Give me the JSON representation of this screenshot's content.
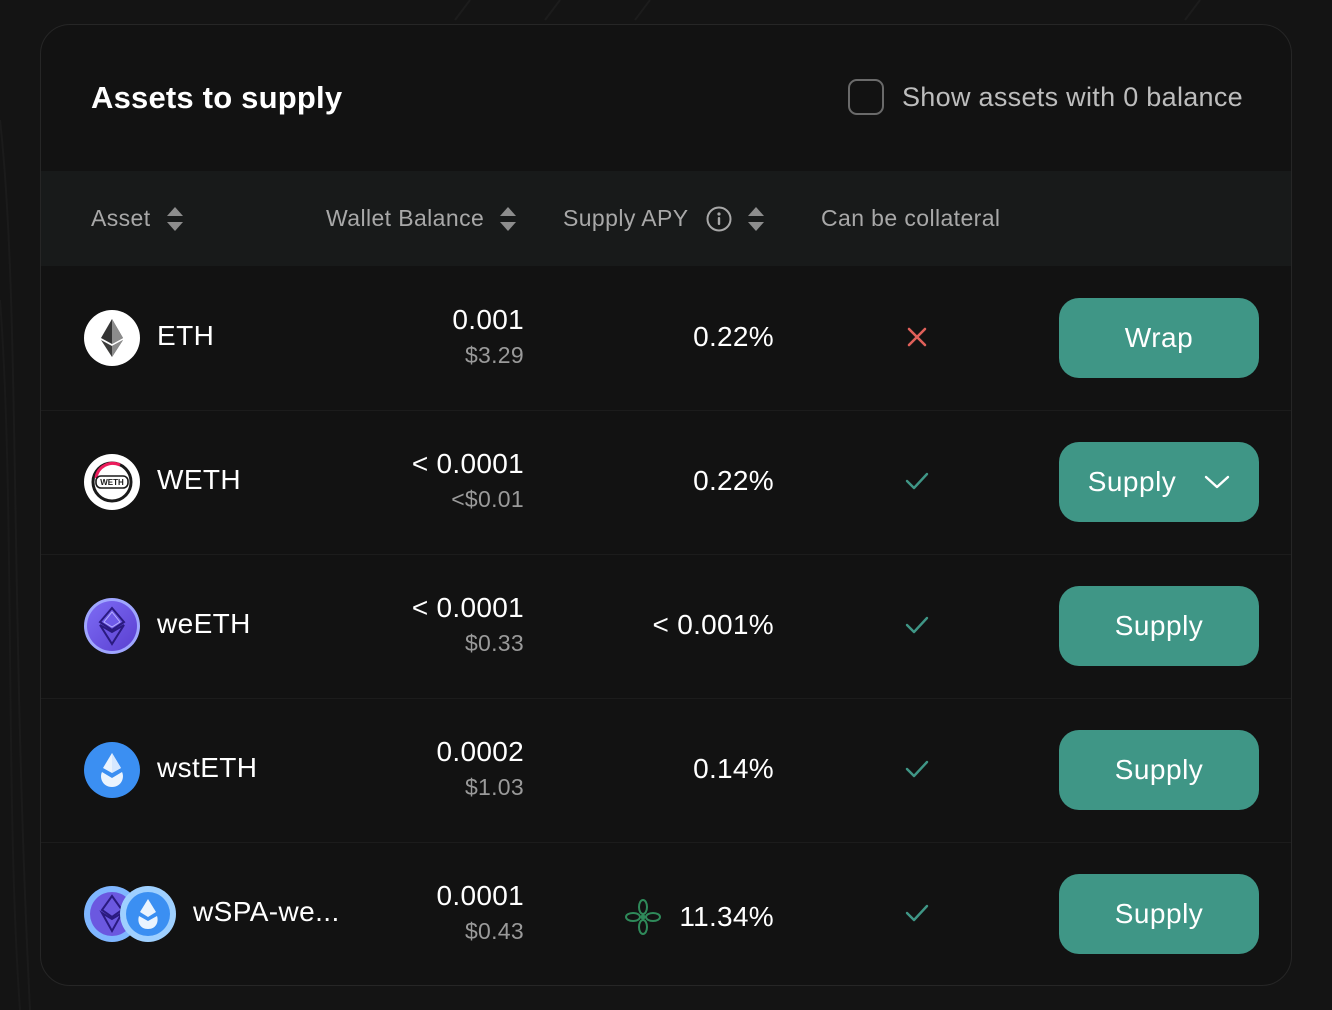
{
  "header": {
    "title": "Assets to supply",
    "show_zero_label": "Show assets with 0 balance",
    "show_zero_checked": false
  },
  "columns": {
    "asset": "Asset",
    "wallet_balance": "Wallet Balance",
    "supply_apy": "Supply APY",
    "collateral": "Can be collateral"
  },
  "rows": [
    {
      "symbol": "ETH",
      "balance": "0.001",
      "usd": "$3.29",
      "apy": "0.22%",
      "collateral": false,
      "action": "Wrap",
      "icon": "eth-icon"
    },
    {
      "symbol": "WETH",
      "balance": "< 0.0001",
      "usd": "<$0.01",
      "apy": "0.22%",
      "collateral": true,
      "action": "Supply",
      "icon": "weth-icon",
      "dropdown": true
    },
    {
      "symbol": "weETH",
      "balance": "< 0.0001",
      "usd": "$0.33",
      "apy": "< 0.001%",
      "collateral": true,
      "action": "Supply",
      "icon": "weeth-icon"
    },
    {
      "symbol": "wstETH",
      "balance": "0.0002",
      "usd": "$1.03",
      "apy": "0.14%",
      "collateral": true,
      "action": "Supply",
      "icon": "wsteth-icon"
    },
    {
      "symbol": "wSPA-we...",
      "balance": "0.0001",
      "usd": "$0.43",
      "apy": "11.34%",
      "collateral": true,
      "action": "Supply",
      "icon": "wspa-weeth-icon",
      "reward_icon": "reward-flower-icon"
    }
  ],
  "colors": {
    "accent": "#3f9686",
    "check": "#3f9686",
    "cross": "#e0605a",
    "background": "#141414",
    "card": "#121212",
    "table_header": "#181a1a"
  }
}
